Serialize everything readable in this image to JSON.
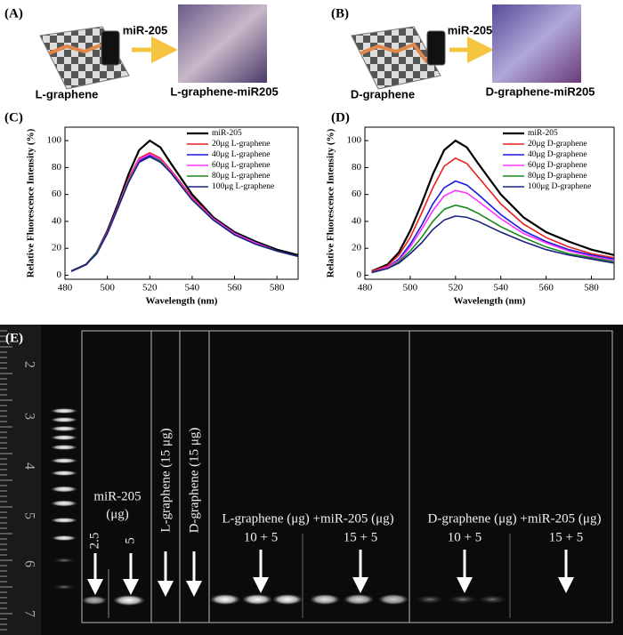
{
  "panel_a": {
    "panel_label": "(A)",
    "reagent": "miR-205",
    "left_label": "L-graphene",
    "right_label": "L-graphene-miR205"
  },
  "panel_b": {
    "panel_label": "(B)",
    "reagent": "miR-205",
    "left_label": "D-graphene",
    "right_label": "D-graphene-miR205"
  },
  "chart_data": [
    {
      "type": "line",
      "panel_label": "(C)",
      "xlabel": "Wavelength (nm)",
      "ylabel": "Relative Fluorescence Intensity (%)",
      "x": [
        483,
        490,
        495,
        500,
        505,
        510,
        515,
        520,
        525,
        530,
        540,
        550,
        560,
        570,
        580,
        590
      ],
      "xlim": [
        480,
        590
      ],
      "ylim": [
        -3,
        110
      ],
      "xticks": [
        480,
        500,
        520,
        540,
        560,
        580
      ],
      "yticks": [
        0,
        20,
        40,
        60,
        80,
        100
      ],
      "legend": "upper right",
      "series": [
        {
          "name": "miR-205",
          "color": "#000000",
          "values": [
            3,
            8,
            17,
            33,
            53,
            75,
            93,
            100,
            95,
            83,
            60,
            43,
            32,
            25,
            19,
            15
          ]
        },
        {
          "name": "20μg L-graphene",
          "color": "#e8221e",
          "values": [
            3,
            8,
            17,
            32,
            51,
            72,
            87,
            91,
            87,
            78,
            58,
            42,
            31,
            24,
            18,
            14
          ]
        },
        {
          "name": "40μg L-graphene",
          "color": "#1a1ae0",
          "values": [
            3,
            8,
            17,
            32,
            50,
            70,
            85,
            89,
            85,
            77,
            57,
            41,
            31,
            24,
            18,
            14
          ]
        },
        {
          "name": "60μg L-graphene",
          "color": "#ff33ff",
          "values": [
            3,
            8,
            17,
            32,
            51,
            71,
            86,
            90,
            86,
            77,
            57,
            42,
            31,
            24,
            18,
            14
          ]
        },
        {
          "name": "80μg L-graphene",
          "color": "#1a8a1a",
          "values": [
            3,
            8,
            17,
            31,
            50,
            70,
            84,
            88,
            85,
            76,
            56,
            41,
            30,
            23,
            18,
            14
          ]
        },
        {
          "name": "100μg L-graphene",
          "color": "#1a237e",
          "values": [
            3,
            8,
            16,
            31,
            50,
            69,
            84,
            88,
            84,
            76,
            56,
            41,
            30,
            23,
            18,
            14
          ]
        }
      ]
    },
    {
      "type": "line",
      "panel_label": "(D)",
      "xlabel": "Wavelength (nm)",
      "ylabel": "Relative Fluorescence Intensity (%)",
      "x": [
        483,
        490,
        495,
        500,
        505,
        510,
        515,
        520,
        525,
        530,
        540,
        550,
        560,
        570,
        580,
        590
      ],
      "xlim": [
        480,
        590
      ],
      "ylim": [
        -3,
        110
      ],
      "xticks": [
        480,
        500,
        520,
        540,
        560,
        580
      ],
      "yticks": [
        0,
        20,
        40,
        60,
        80,
        100
      ],
      "legend": "upper right",
      "series": [
        {
          "name": "miR-205",
          "color": "#000000",
          "values": [
            3,
            8,
            17,
            33,
            53,
            75,
            93,
            100,
            95,
            83,
            60,
            43,
            32,
            25,
            19,
            15
          ]
        },
        {
          "name": "20μg D-graphene",
          "color": "#e8221e",
          "values": [
            3,
            7,
            15,
            28,
            46,
            65,
            81,
            87,
            83,
            73,
            53,
            38,
            28,
            21,
            16,
            13
          ]
        },
        {
          "name": "40μg D-graphene",
          "color": "#1a1ae0",
          "values": [
            2,
            6,
            12,
            23,
            37,
            53,
            65,
            70,
            67,
            60,
            45,
            33,
            25,
            19,
            15,
            12
          ]
        },
        {
          "name": "60μg D-graphene",
          "color": "#ff33ff",
          "values": [
            2,
            6,
            11,
            21,
            34,
            48,
            59,
            63,
            61,
            55,
            42,
            31,
            24,
            18,
            14,
            11
          ]
        },
        {
          "name": "80μg D-graphene",
          "color": "#1a8a1a",
          "values": [
            2,
            5,
            10,
            18,
            28,
            40,
            49,
            52,
            50,
            46,
            36,
            28,
            21,
            16,
            13,
            10
          ]
        },
        {
          "name": "100μg D-graphene",
          "color": "#1a237e",
          "values": [
            2,
            5,
            9,
            16,
            24,
            34,
            41,
            44,
            43,
            40,
            32,
            25,
            19,
            15,
            12,
            9
          ]
        }
      ]
    }
  ],
  "panel_e": {
    "panel_label": "(E)",
    "ruler": [
      "2",
      "3",
      "4",
      "5",
      "6",
      "7"
    ],
    "mir_label": "miR-205",
    "mir_unit": "(μg)",
    "mir_amounts": [
      "2.5",
      "5"
    ],
    "lane_labels": [
      "L-graphene (15 μg)",
      "D-graphene (15 μg)"
    ],
    "groups": [
      {
        "label": "L-graphene (μg) +miR-205 (μg)",
        "doses": [
          "10 + 5",
          "15 + 5"
        ]
      },
      {
        "label": "D-graphene (μg) +miR-205 (μg)",
        "doses": [
          "10 + 5",
          "15 + 5"
        ]
      }
    ]
  }
}
